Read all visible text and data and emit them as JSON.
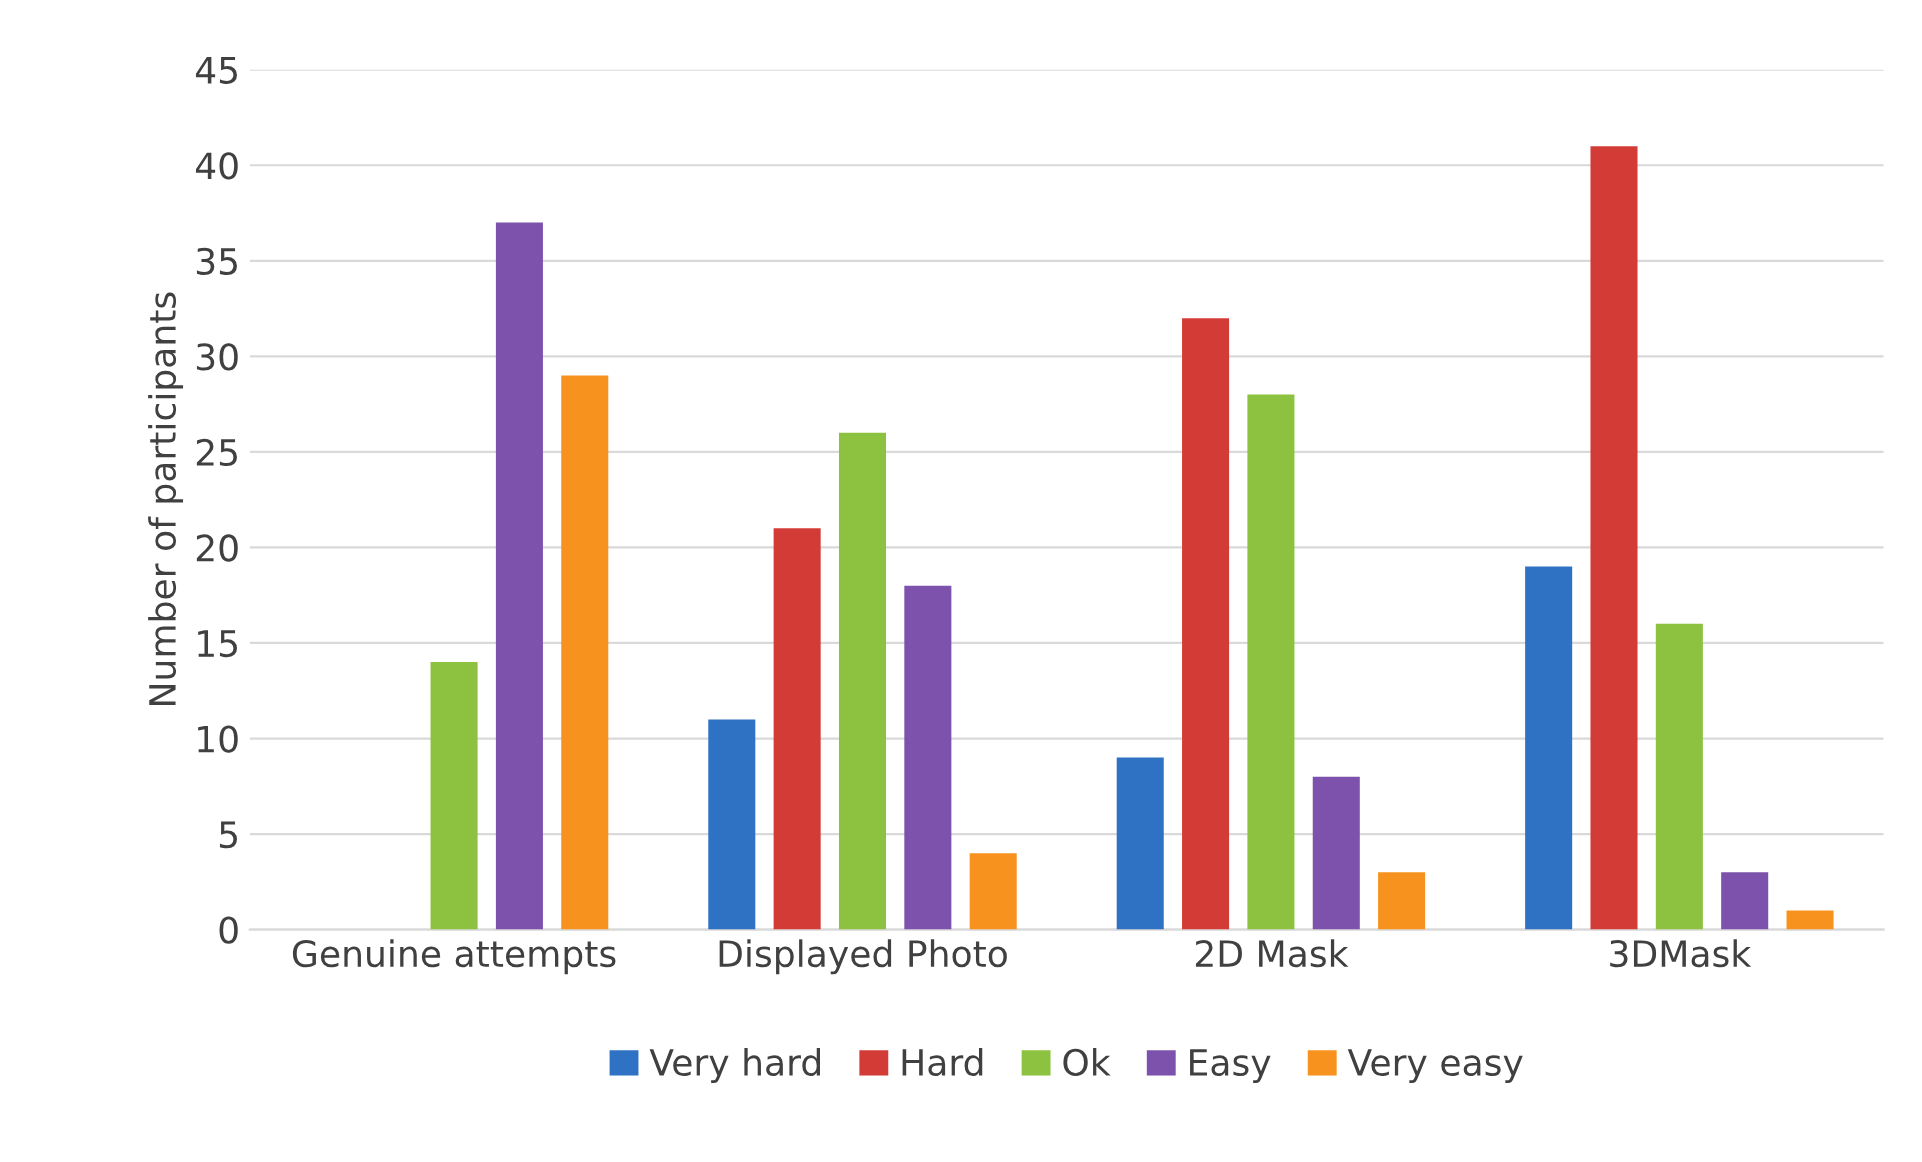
{
  "chart_data": {
    "type": "bar",
    "ylabel": "Number of participants",
    "categories": [
      "Genuine attempts",
      "Displayed Photo",
      "2D Mask",
      "3DMask"
    ],
    "series": [
      {
        "name": "Very hard",
        "color": "#2f72c4",
        "values": [
          0,
          11,
          9,
          19
        ]
      },
      {
        "name": "Hard",
        "color": "#d33b36",
        "values": [
          0,
          21,
          32,
          41
        ]
      },
      {
        "name": "Ok",
        "color": "#8cc23f",
        "values": [
          14,
          26,
          28,
          16
        ]
      },
      {
        "name": "Easy",
        "color": "#7d52ad",
        "values": [
          37,
          18,
          8,
          3
        ]
      },
      {
        "name": "Very easy",
        "color": "#f7921e",
        "values": [
          29,
          4,
          3,
          1
        ]
      }
    ],
    "ylim": [
      0,
      45
    ],
    "yticks": [
      0,
      5,
      10,
      15,
      20,
      25,
      30,
      35,
      40,
      45
    ],
    "grid": "y",
    "legend": "bottom"
  }
}
